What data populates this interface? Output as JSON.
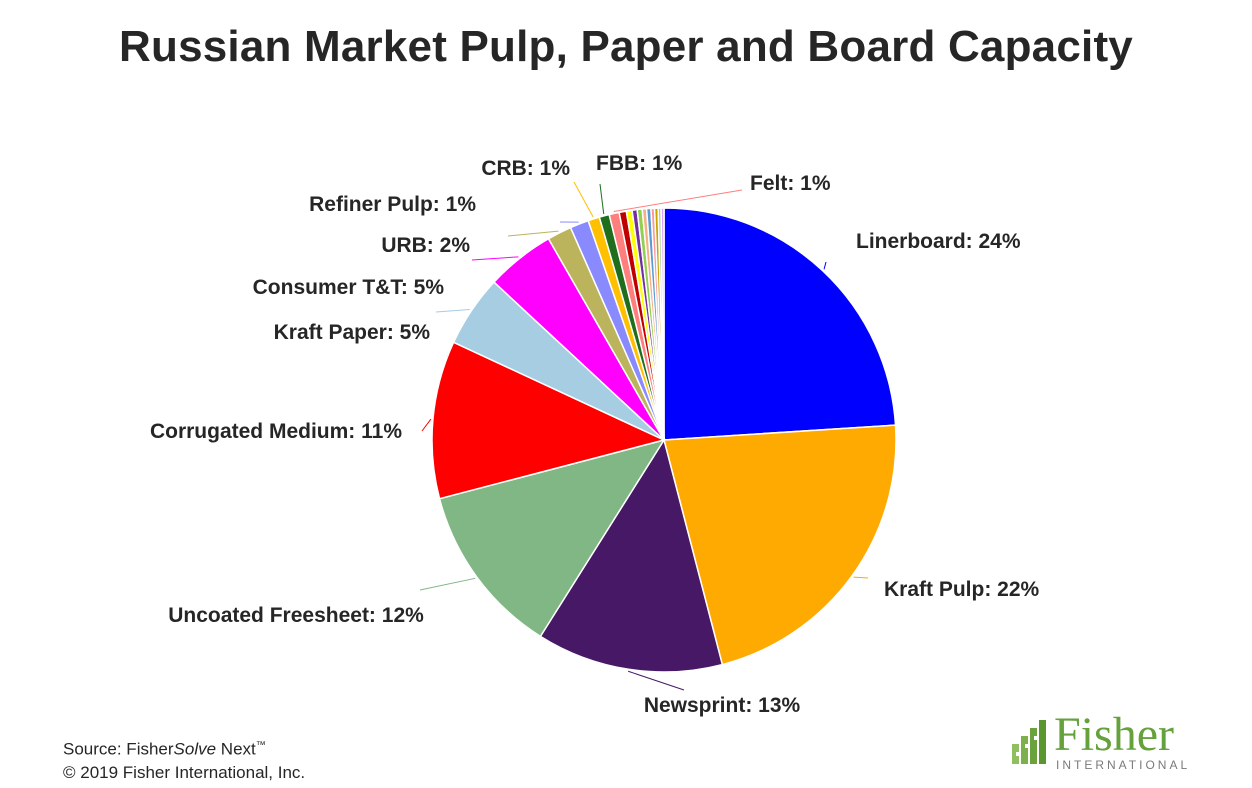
{
  "chart_data": {
    "type": "pie",
    "title": "Russian Market Pulp, Paper and Board Capacity",
    "slices": [
      {
        "label": "Linerboard: 24%",
        "value": 24.0,
        "color": "#0000ff"
      },
      {
        "label": "Kraft Pulp: 22%",
        "value": 22.0,
        "color": "#ffaa00"
      },
      {
        "label": "Newsprint: 13%",
        "value": 13.0,
        "color": "#471866"
      },
      {
        "label": "Uncoated Freesheet: 12%",
        "value": 12.0,
        "color": "#80b784"
      },
      {
        "label": "Corrugated Medium: 11%",
        "value": 11.0,
        "color": "#ff0000"
      },
      {
        "label": "Kraft Paper: 5%",
        "value": 5.0,
        "color": "#a6cde2"
      },
      {
        "label": "Consumer T&T: 5%",
        "value": 4.8,
        "color": "#ff00ff"
      },
      {
        "label": "URB: 2%",
        "value": 1.7,
        "color": "#bcb45c"
      },
      {
        "label": "Refiner Pulp: 1%",
        "value": 1.3,
        "color": "#8a8aff"
      },
      {
        "label": "CRB: 1%",
        "value": 0.8,
        "color": "#ffc000"
      },
      {
        "label": "FBB: 1%",
        "value": 0.7,
        "color": "#1e6e1e"
      },
      {
        "label": "Felt: 1%",
        "value": 0.7,
        "color": "#ff7f7f"
      },
      {
        "label": "",
        "value": 0.5,
        "color": "#c00000"
      },
      {
        "label": "",
        "value": 0.4,
        "color": "#ffff00"
      },
      {
        "label": "",
        "value": 0.35,
        "color": "#7030a0"
      },
      {
        "label": "",
        "value": 0.35,
        "color": "#92d050"
      },
      {
        "label": "",
        "value": 0.3,
        "color": "#f4b183"
      },
      {
        "label": "",
        "value": 0.3,
        "color": "#5b9bd5"
      },
      {
        "label": "",
        "value": 0.25,
        "color": "#ff9999"
      },
      {
        "label": "",
        "value": 0.25,
        "color": "#c9a400"
      },
      {
        "label": "",
        "value": 0.2,
        "color": "#a9d18e"
      },
      {
        "label": "",
        "value": 0.2,
        "color": "#d9a0ff"
      }
    ]
  },
  "source": {
    "prefix": "Source: Fisher",
    "italic": "Solve",
    "suffix": " Next",
    "tm": "™",
    "copyright": "© 2019 Fisher International, Inc."
  },
  "logo": {
    "word": "Fisher",
    "sub": "INTERNATIONAL",
    "color": "#66a23c"
  }
}
